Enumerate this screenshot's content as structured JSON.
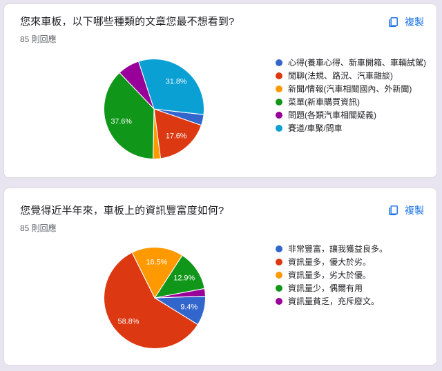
{
  "page": {
    "background_color": "#e8e4f0",
    "accent_color": "#1a73e8"
  },
  "copy_button": {
    "label": "複製"
  },
  "cards": [
    {
      "title": "您來車板，以下哪些種類的文章您最不想看到?",
      "responses": "85 則回應"
    },
    {
      "title": "您覺得近半年來，車板上的資訊豐富度如何?",
      "responses": "85 則回應"
    }
  ],
  "chart_data": [
    {
      "type": "pie",
      "title": "您來車板，以下哪些種類的文章您最不想看到?",
      "responses_text": "85 則回應",
      "legend_position": "right",
      "start_angle": 96.5,
      "label_radius": 0.7,
      "slices": [
        {
          "label": "心得(養車心得、新車開箱、車輛試駕)",
          "percent": 3.5,
          "color": "#3366cc",
          "show_label": false
        },
        {
          "label": "閒聊(法規、路況、汽車雜談)",
          "percent": 17.6,
          "color": "#dc3912",
          "show_label": true
        },
        {
          "label": "新聞/情報(汽車相關國內、外新聞)",
          "percent": 2.4,
          "color": "#ff9900",
          "show_label": false
        },
        {
          "label": "菜單(新車購買資訊)",
          "percent": 37.6,
          "color": "#109618",
          "show_label": true
        },
        {
          "label": "問題(各類汽車相關疑義)",
          "percent": 7.1,
          "color": "#990099",
          "show_label": false
        },
        {
          "label": "賽道/車聚/問車",
          "percent": 31.8,
          "color": "#0aa0d4",
          "show_label": true
        }
      ]
    },
    {
      "type": "pie",
      "title": "您覺得近半年來，車板上的資訊豐富度如何?",
      "responses_text": "85 則回應",
      "legend_position": "right",
      "start_angle": 88,
      "label_radius": 0.7,
      "slices": [
        {
          "label": "非常豐富，讓我獲益良多。",
          "percent": 9.4,
          "color": "#3366cc",
          "show_label": true
        },
        {
          "label": "資訊量多，優大於劣。",
          "percent": 58.8,
          "color": "#dc3912",
          "show_label": true
        },
        {
          "label": "資訊量多，劣大於優。",
          "percent": 16.5,
          "color": "#ff9900",
          "show_label": true
        },
        {
          "label": "資訊量少，偶爾有用",
          "percent": 12.9,
          "color": "#109618",
          "show_label": true
        },
        {
          "label": "資訊量貧乏，充斥廢文。",
          "percent": 2.4,
          "color": "#990099",
          "show_label": false
        }
      ]
    }
  ]
}
